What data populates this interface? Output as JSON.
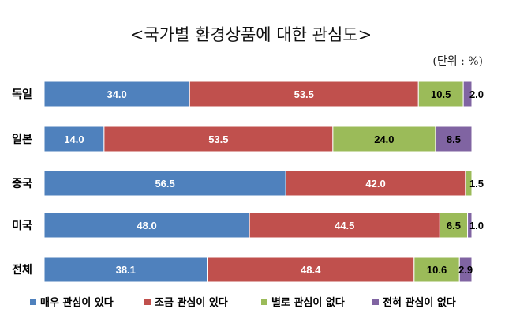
{
  "chart_data": {
    "type": "bar",
    "orientation": "horizontal",
    "stacked": true,
    "title": "<국가별 환경상품에 대한 관심도>",
    "unit_note": "(단위 : %)",
    "categories": [
      "독일",
      "일본",
      "중국",
      "미국",
      "전체"
    ],
    "series": [
      {
        "name": "매우 관심이 있다",
        "color": "#4f81bd",
        "values": [
          34.0,
          14.0,
          56.5,
          48.0,
          38.1
        ],
        "labels": [
          "34.0",
          "14.0",
          "56.5",
          "48.0",
          "38.1"
        ]
      },
      {
        "name": "조금 관심이 있다",
        "color": "#c0504d",
        "values": [
          53.5,
          53.5,
          42.0,
          44.5,
          48.4
        ],
        "labels": [
          "53.5",
          "53.5",
          "42.0",
          "44.5",
          "48.4"
        ]
      },
      {
        "name": "별로 관심이 없다",
        "color": "#9bbb59",
        "values": [
          10.5,
          24.0,
          1.5,
          6.5,
          10.6
        ],
        "labels": [
          "10.5",
          "24.0",
          "1.5",
          "6.5",
          "10.6"
        ]
      },
      {
        "name": "전혀 관심이 없다",
        "color": "#8064a2",
        "values": [
          2.0,
          8.5,
          0.0,
          1.0,
          2.9
        ],
        "labels": [
          "2.0",
          "8.5",
          "",
          "1.0",
          "2.9"
        ]
      }
    ],
    "xlim": [
      0,
      100
    ],
    "grid": false,
    "legend_position": "bottom"
  }
}
